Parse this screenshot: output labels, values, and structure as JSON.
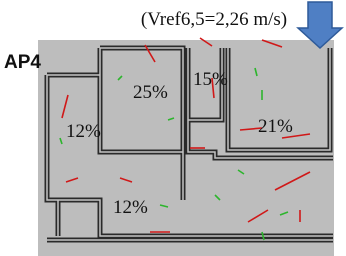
{
  "header": {
    "reference": "(Vref6,5=2,26 m/s)",
    "label": "AP4"
  },
  "rooms": [
    {
      "label": "25%"
    },
    {
      "label": "15%"
    },
    {
      "label": "12%"
    },
    {
      "label": "21%"
    },
    {
      "label": "12%"
    }
  ]
}
